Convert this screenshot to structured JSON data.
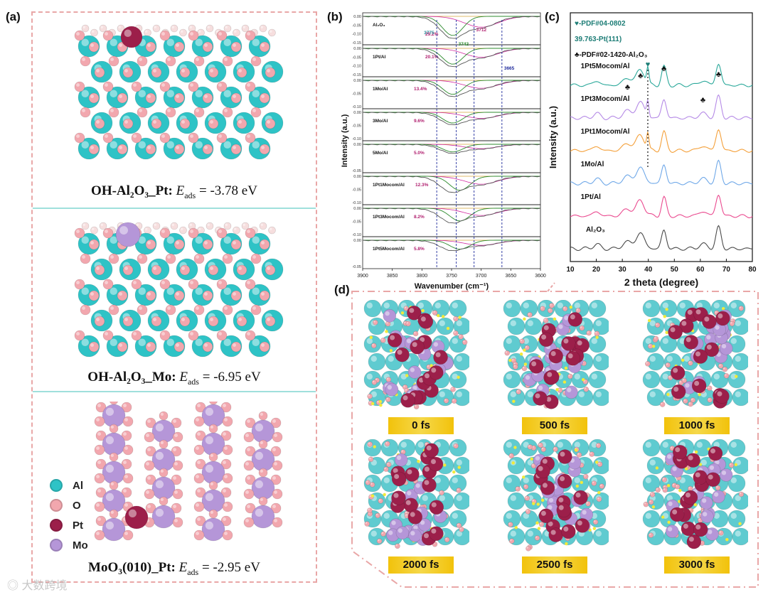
{
  "panel_a": {
    "label": "(a)",
    "structures": [
      {
        "name": "OH-Al₂O₃_Pt:",
        "energy_label": "E",
        "energy_sub": "ads",
        "energy_value": " = -3.78 eV"
      },
      {
        "name": "OH-Al₂O₃_Mo:",
        "energy_label": "E",
        "energy_sub": "ads",
        "energy_value": " = -6.95 eV"
      },
      {
        "name": "MoO₃(010)_Pt:",
        "energy_label": "E",
        "energy_sub": "ads",
        "energy_value": " = -2.95 eV"
      }
    ],
    "legend": [
      {
        "label": "Al",
        "color": "#2ec3c6"
      },
      {
        "label": "O",
        "color": "#f2a7ae"
      },
      {
        "label": "Pt",
        "color": "#9c1f4a"
      },
      {
        "label": "Mo",
        "color": "#b596d8"
      }
    ]
  },
  "panel_b": {
    "label": "(b)",
    "chart_data": {
      "type": "line",
      "title": "",
      "xlabel": "Wavenumber (cm⁻¹)",
      "ylabel": "Intensity (a.u.)",
      "xlim": [
        3900,
        3600
      ],
      "xticks": [
        3900,
        3850,
        3800,
        3750,
        3700,
        3650,
        3600
      ],
      "reference_lines": [
        3775,
        3742,
        3712,
        3665
      ],
      "samples": [
        {
          "name": "Al₂O₃",
          "percent": "29.2%",
          "yticks": [
            "0.00",
            "-0.05",
            "-0.10",
            "-0.15"
          ]
        },
        {
          "name": "1Pt/Al",
          "percent": "20.1%",
          "yticks": [
            "0.00",
            "-0.05",
            "-0.10",
            "-0.15"
          ]
        },
        {
          "name": "1Mo/Al",
          "percent": "13.4%",
          "yticks": [
            "0.00",
            "-0.05",
            "-0.10"
          ]
        },
        {
          "name": "3Mo/Al",
          "percent": "9.6%",
          "yticks": [
            "0.00",
            "-0.05",
            "-0.10"
          ]
        },
        {
          "name": "5Mo/Al",
          "percent": "5.0%",
          "yticks": [
            "0.00",
            "-0.05"
          ]
        },
        {
          "name": "1Pt1Mocom/Al",
          "percent": "12.3%",
          "yticks": [
            "0.00",
            "-0.05",
            "-0.10"
          ]
        },
        {
          "name": "1Pt3Mocom/Al",
          "percent": "8.2%",
          "yticks": [
            "0.00",
            "-0.05",
            "-0.10"
          ]
        },
        {
          "name": "1Pt5Mocom/Al",
          "percent": "5.8%",
          "yticks": [
            "0.00",
            "-0.05"
          ]
        }
      ],
      "annotations": [
        "3775",
        "3742",
        "3712",
        "3665"
      ]
    }
  },
  "panel_c": {
    "label": "(c)",
    "legend": [
      "♥-PDF#04-0802",
      "39.763-Pt(111)",
      "♣-PDF#02-1420-Al₂O₃"
    ],
    "chart_data": {
      "type": "line",
      "xlabel": "2 theta (degree)",
      "ylabel": "Intensity (a.u.)",
      "xlim": [
        10,
        80
      ],
      "xticks": [
        10,
        20,
        30,
        40,
        50,
        60,
        70,
        80
      ],
      "series": [
        {
          "name": "1Pt5Mocom/Al",
          "color": "#2aa89a"
        },
        {
          "name": "1Pt3Mocom/Al",
          "color": "#b58ae6"
        },
        {
          "name": "1Pt1Mocom/Al",
          "color": "#f4a03a"
        },
        {
          "name": "1Mo/Al",
          "color": "#6fa8e8"
        },
        {
          "name": "1Pt/Al",
          "color": "#ea4a8f"
        },
        {
          "name": "Al₂O₃",
          "color": "#4a4a4a"
        }
      ],
      "peaks_deg": [
        32,
        37,
        39.8,
        46,
        61,
        67
      ]
    }
  },
  "panel_d": {
    "label": "(d)",
    "snapshots": [
      "0 fs",
      "500 fs",
      "1000 fs",
      "2000 fs",
      "2500 fs",
      "3000 fs"
    ]
  },
  "watermark": "大数跨境"
}
